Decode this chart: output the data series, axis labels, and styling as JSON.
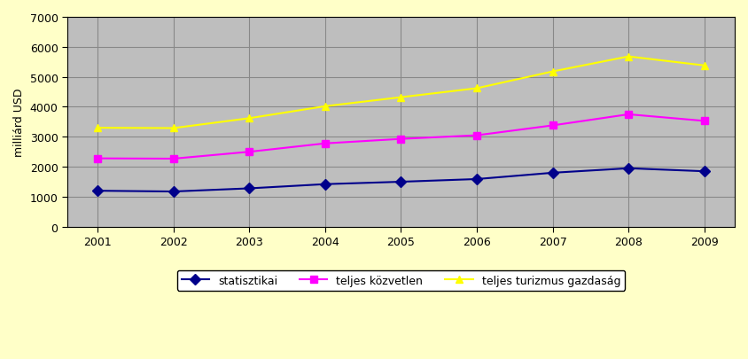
{
  "years": [
    2001,
    2002,
    2003,
    2004,
    2005,
    2006,
    2007,
    2008,
    2009
  ],
  "statisztikai": [
    1200,
    1175,
    1280,
    1420,
    1500,
    1590,
    1800,
    1950,
    1850
  ],
  "teljes_kozvetlen": [
    2280,
    2270,
    2500,
    2780,
    2930,
    3050,
    3380,
    3750,
    3530
  ],
  "teljes_turizmus_gazdasag": [
    3300,
    3290,
    3620,
    4020,
    4320,
    4620,
    5180,
    5680,
    5380
  ],
  "line_colors": [
    "#00008B",
    "#FF00FF",
    "#FFFF00"
  ],
  "marker_styles": [
    "D",
    "s",
    "^"
  ],
  "legend_labels": [
    "statisztikai",
    "teljes közvetlen",
    "teljes turizmus gazdaság"
  ],
  "ylabel": "milliárd USD",
  "ylim": [
    0,
    7000
  ],
  "yticks": [
    0,
    1000,
    2000,
    3000,
    4000,
    5000,
    6000,
    7000
  ],
  "background_color": "#FFFFC8",
  "plot_area_color": "#BEBEBE",
  "grid_color": "#888888",
  "axis_fontsize": 9,
  "legend_fontsize": 9
}
